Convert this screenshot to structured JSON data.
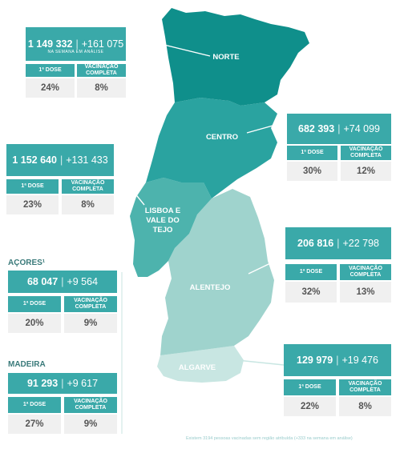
{
  "labels": {
    "first_dose": "1ª DOSE",
    "full_vaccination": "VACINAÇÃO COMPLETA",
    "week_note": "NA SEMANA EM ANÁLISE",
    "separator": "|"
  },
  "regions": {
    "norte": {
      "name": "NORTE",
      "total": "1 149 332",
      "delta": "+161 075",
      "first_dose_pct": "24%",
      "full_pct": "8%"
    },
    "centro": {
      "name": "CENTRO",
      "total": "682 393",
      "delta": "+74 099",
      "first_dose_pct": "30%",
      "full_pct": "12%"
    },
    "lisboa": {
      "name": "LISBOA E VALE DO TEJO",
      "total": "1 152 640",
      "delta": "+131 433",
      "first_dose_pct": "23%",
      "full_pct": "8%"
    },
    "alentejo": {
      "name": "ALENTEJO",
      "total": "206 816",
      "delta": "+22 798",
      "first_dose_pct": "32%",
      "full_pct": "13%"
    },
    "algarve": {
      "name": "ALGARVE",
      "total": "129 979",
      "delta": "+19 476",
      "first_dose_pct": "22%",
      "full_pct": "8%"
    },
    "acores": {
      "name": "AÇORES¹",
      "total": "68 047",
      "delta": "+9 564",
      "first_dose_pct": "20%",
      "full_pct": "9%"
    },
    "madeira": {
      "name": "MADEIRA",
      "total": "91 293",
      "delta": "+9 617",
      "first_dose_pct": "27%",
      "full_pct": "9%"
    }
  },
  "footnote": "Existem 3194 pessoas vacinadas sem região atribuída (+333 na semana em análise)",
  "colors": {
    "norte": "#0f8f8b",
    "centro": "#2aa3a0",
    "lisboa": "#4db3ad",
    "alentejo": "#9fd3cd",
    "algarve": "#c8e6e2",
    "card_accent": "#3aa9a9",
    "value_bg": "#f0f0f0"
  }
}
